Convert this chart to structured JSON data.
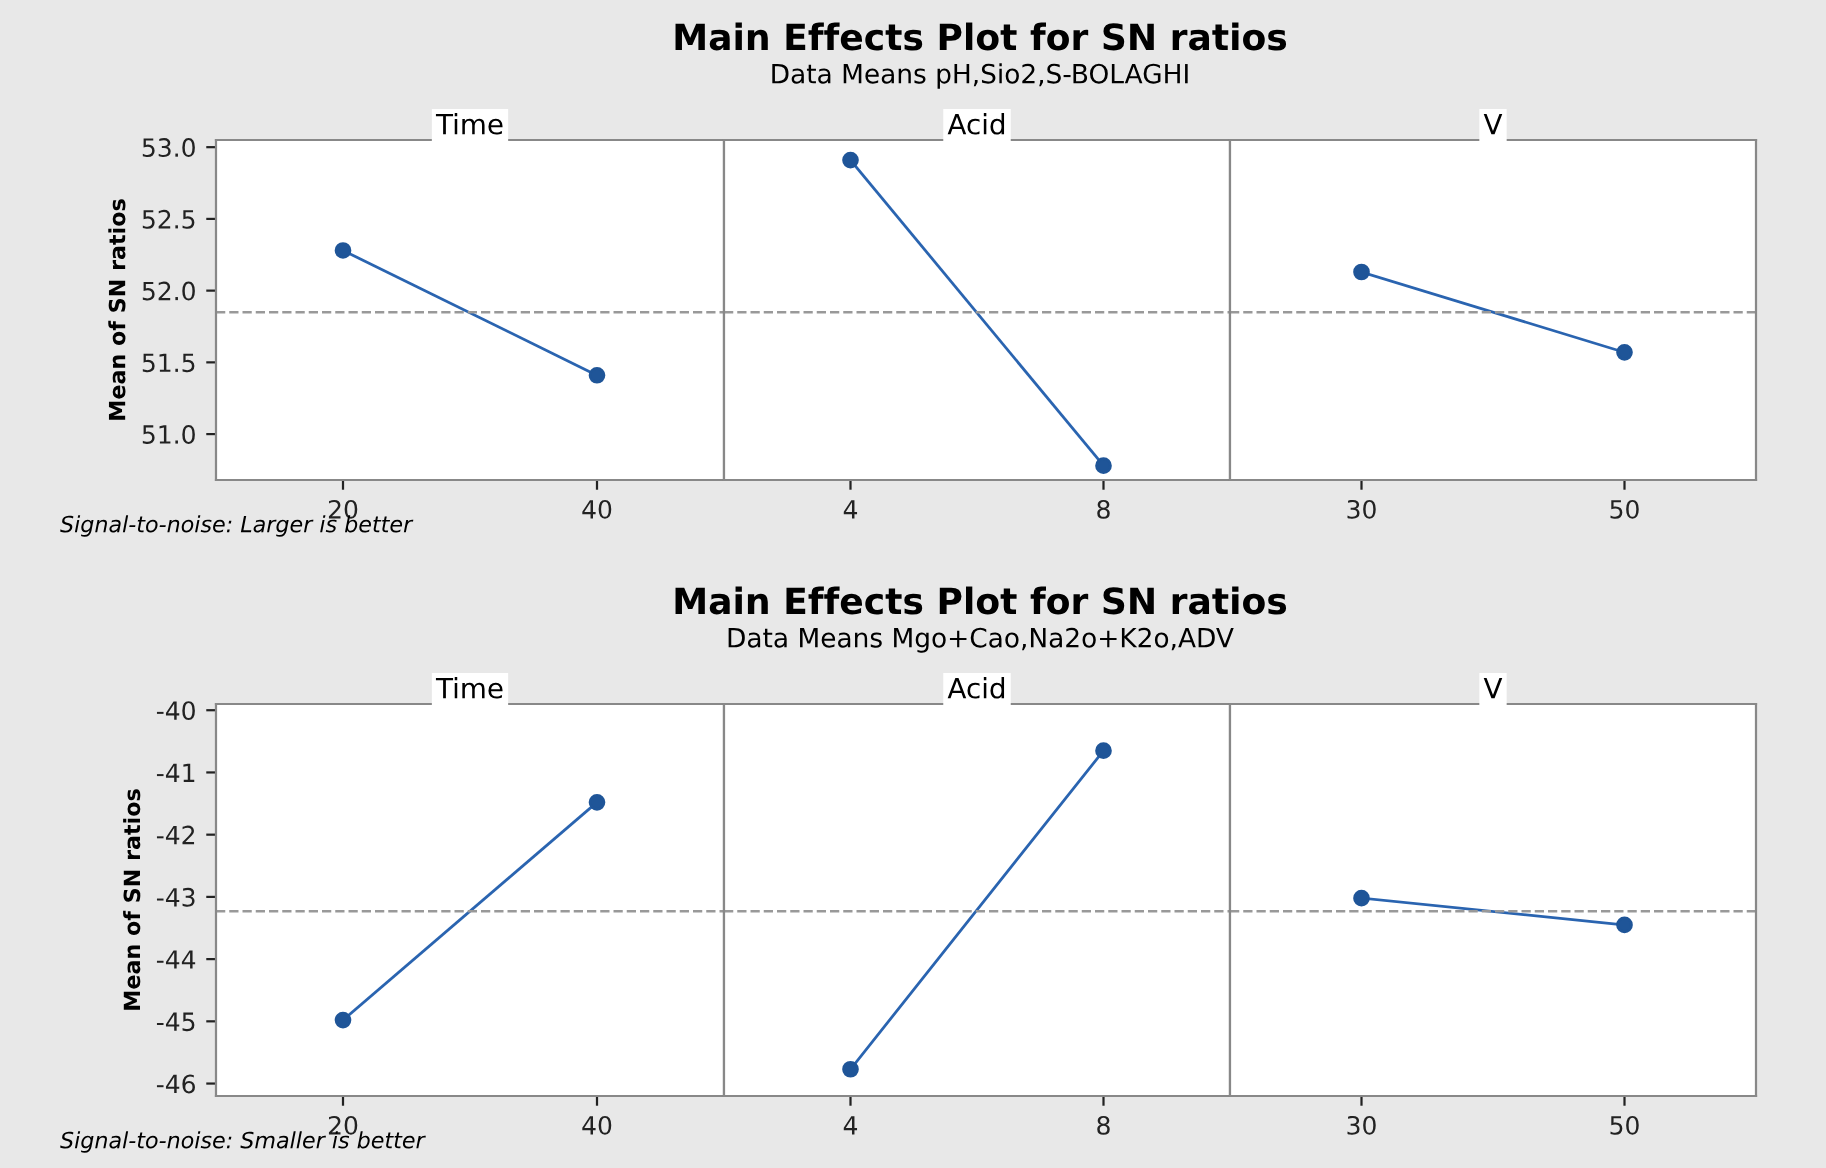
{
  "chart_data": [
    {
      "type": "line",
      "title": "Time",
      "ylabel": "Mean of SN ratios",
      "annotations": [
        "Main Effects Plot for SN ratios",
        "Data Means pH,Sio2,S-BOLAGHI",
        "Signal-to-noise: Larger is better"
      ],
      "categories": [
        "20",
        "40"
      ],
      "series": [
        {
          "color": "#2a64b0",
          "values": [
            52.28,
            51.41
          ]
        }
      ],
      "ylim": [
        50.68,
        53.05
      ],
      "yticks": [
        {
          "value": 51,
          "label": "51.0"
        },
        {
          "value": 51.5,
          "label": "51.5"
        },
        {
          "value": 52,
          "label": "52.0"
        },
        {
          "value": 52.5,
          "label": "52.5"
        },
        {
          "value": 53,
          "label": "53.0"
        }
      ],
      "ref_lines": [
        {
          "axis": "y",
          "value": 51.85,
          "color": "#999999",
          "line_style": "dashed"
        }
      ],
      "marker": "circle",
      "line_style": "solid",
      "grid": false,
      "legend": false
    },
    {
      "type": "line",
      "title": "Acid",
      "categories": [
        "4",
        "8"
      ],
      "series": [
        {
          "color": "#2a64b0",
          "values": [
            52.91,
            50.78
          ]
        }
      ],
      "ylim": [
        50.68,
        53.05
      ],
      "yticks": [
        51,
        51.5,
        52,
        52.5,
        53
      ],
      "ref_lines": [
        {
          "axis": "y",
          "value": 51.85,
          "color": "#999999",
          "line_style": "dashed"
        }
      ],
      "marker": "circle",
      "line_style": "solid",
      "tick_labels": "x",
      "grid": false,
      "legend": false
    },
    {
      "type": "line",
      "title": "V",
      "categories": [
        "30",
        "50"
      ],
      "series": [
        {
          "color": "#2a64b0",
          "values": [
            52.13,
            51.57
          ]
        }
      ],
      "ylim": [
        50.68,
        53.05
      ],
      "yticks": [
        51,
        51.5,
        52,
        52.5,
        53
      ],
      "ref_lines": [
        {
          "axis": "y",
          "value": 51.85,
          "color": "#999999",
          "line_style": "dashed"
        }
      ],
      "marker": "circle",
      "line_style": "solid",
      "tick_labels": "x",
      "grid": false,
      "legend": false
    },
    {
      "type": "line",
      "title": "Time",
      "ylabel": "Mean of SN ratios",
      "annotations": [
        "Main Effects Plot for SN ratios",
        "Data Means Mgo+Cao,Na2o+K2o,ADV",
        "Signal-to-noise: Smaller is better"
      ],
      "categories": [
        "20",
        "40"
      ],
      "series": [
        {
          "color": "#2a64b0",
          "values": [
            -44.98,
            -41.48
          ]
        }
      ],
      "ylim": [
        -46.2,
        -39.9
      ],
      "yticks": [
        -46,
        -45,
        -44,
        -43,
        -42,
        -41,
        -40
      ],
      "ref_lines": [
        {
          "axis": "y",
          "value": -43.23,
          "color": "#999999",
          "line_style": "dashed"
        }
      ],
      "marker": "circle",
      "line_style": "solid",
      "grid": false,
      "legend": false
    },
    {
      "type": "line",
      "title": "Acid",
      "categories": [
        "4",
        "8"
      ],
      "series": [
        {
          "color": "#2a64b0",
          "values": [
            -45.77,
            -40.65
          ]
        }
      ],
      "ylim": [
        -46.2,
        -39.9
      ],
      "yticks": [
        -46,
        -45,
        -44,
        -43,
        -42,
        -41,
        -40
      ],
      "ref_lines": [
        {
          "axis": "y",
          "value": -43.23,
          "color": "#999999",
          "line_style": "dashed"
        }
      ],
      "marker": "circle",
      "line_style": "solid",
      "tick_labels": "x",
      "grid": false,
      "legend": false
    },
    {
      "type": "line",
      "title": "V",
      "categories": [
        "30",
        "50"
      ],
      "series": [
        {
          "color": "#2a64b0",
          "values": [
            -43.02,
            -43.45
          ]
        }
      ],
      "ylim": [
        -46.2,
        -39.9
      ],
      "yticks": [
        -46,
        -45,
        -44,
        -43,
        -42,
        -41,
        -40
      ],
      "ref_lines": [
        {
          "axis": "y",
          "value": -43.23,
          "color": "#999999",
          "line_style": "dashed"
        }
      ],
      "marker": "circle",
      "line_style": "solid",
      "tick_labels": "x",
      "grid": false,
      "legend": false
    }
  ]
}
